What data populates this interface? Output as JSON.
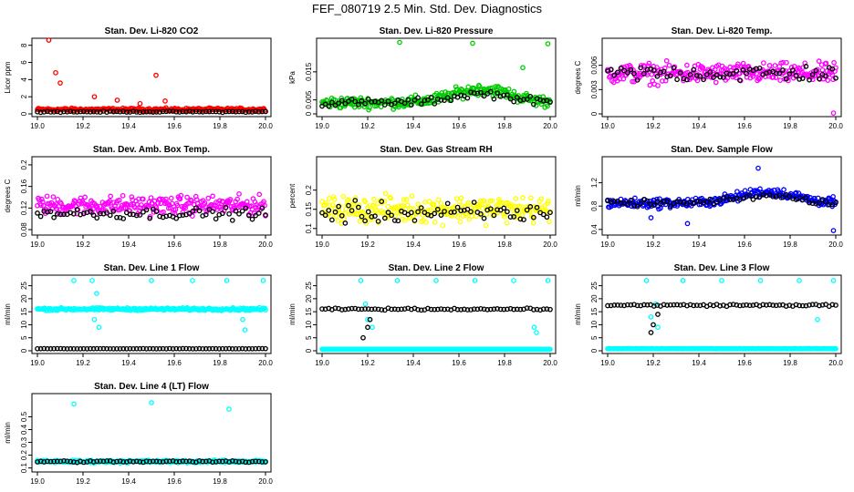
{
  "title": "FEF_080719  2.5 Min. Std. Dev. Diagnostics",
  "chart_data": [
    {
      "type": "scatter",
      "title": "Stan. Dev. Li-820 CO2",
      "ylabel": "Licor ppm",
      "xlim": [
        19.0,
        20.0
      ],
      "ylim": [
        0,
        8.5
      ],
      "yticks": [
        0,
        2,
        4,
        6,
        8
      ],
      "xticks": [
        19.0,
        19.2,
        19.4,
        19.6,
        19.8,
        20.0
      ],
      "series": [
        {
          "name": "red",
          "color": "#ff0000",
          "base": 0.5,
          "noise": 0.25,
          "events": [
            [
              19.08,
              4.8
            ],
            [
              19.1,
              3.6
            ],
            [
              19.05,
              8.6
            ],
            [
              19.25,
              2.0
            ],
            [
              19.35,
              1.6
            ],
            [
              19.45,
              1.2
            ],
            [
              19.52,
              4.5
            ],
            [
              19.56,
              1.5
            ]
          ]
        },
        {
          "name": "black",
          "color": "#000000",
          "base": 0.25,
          "noise": 0.1,
          "events": []
        }
      ]
    },
    {
      "type": "scatter",
      "title": "Stan. Dev. Li-820 Pressure",
      "ylabel": "kPa",
      "xlim": [
        19.0,
        20.0
      ],
      "ylim": [
        0,
        0.026
      ],
      "yticks": [
        0.0,
        0.005,
        0.015
      ],
      "xticks": [
        19.0,
        19.2,
        19.4,
        19.6,
        19.8,
        20.0
      ],
      "series": [
        {
          "name": "green",
          "color": "#00cc00",
          "base": 0.004,
          "noise": 0.003,
          "events": [
            [
              19.34,
              0.0255
            ],
            [
              19.66,
              0.0252
            ],
            [
              19.88,
              0.0165
            ],
            [
              19.99,
              0.025
            ]
          ]
        },
        {
          "name": "black",
          "color": "#000000",
          "base": 0.004,
          "noise": 0.002,
          "events": []
        }
      ]
    },
    {
      "type": "scatter",
      "title": "Stan. Dev. Li-820 Temp.",
      "ylabel": "degrees C",
      "xlim": [
        19.0,
        20.0
      ],
      "ylim": [
        0,
        0.009
      ],
      "yticks": [
        0.0,
        0.003,
        0.006
      ],
      "xticks": [
        19.0,
        19.2,
        19.4,
        19.6,
        19.8,
        20.0
      ],
      "series": [
        {
          "name": "magenta",
          "color": "#ff00ff",
          "base": 0.005,
          "noise": 0.0018,
          "events": [
            [
              19.99,
              0.0001
            ]
          ]
        },
        {
          "name": "black",
          "color": "#000000",
          "base": 0.005,
          "noise": 0.0015,
          "events": []
        }
      ]
    },
    {
      "type": "scatter",
      "title": "Stan. Dev. Amb. Box Temp.",
      "ylabel": "degrees C",
      "xlim": [
        19.0,
        20.0
      ],
      "ylim": [
        0.075,
        0.21
      ],
      "yticks": [
        0.08,
        0.12,
        0.16,
        0.2
      ],
      "xticks": [
        19.0,
        19.2,
        19.4,
        19.6,
        19.8,
        20.0
      ],
      "series": [
        {
          "name": "magenta",
          "color": "#ff00ff",
          "base": 0.125,
          "noise": 0.025,
          "events": []
        },
        {
          "name": "black",
          "color": "#000000",
          "base": 0.11,
          "noise": 0.015,
          "events": []
        }
      ]
    },
    {
      "type": "scatter",
      "title": "Stan. Dev. Gas Stream RH",
      "ylabel": "percent",
      "xlim": [
        19.0,
        20.0
      ],
      "ylim": [
        0.09,
        0.28
      ],
      "yticks": [
        0.1,
        0.15,
        0.2
      ],
      "xticks": [
        19.0,
        19.2,
        19.4,
        19.6,
        19.8,
        20.0
      ],
      "series": [
        {
          "name": "yellow",
          "color": "#ffff00",
          "base": 0.15,
          "noise": 0.05,
          "events": []
        },
        {
          "name": "black",
          "color": "#000000",
          "base": 0.14,
          "noise": 0.04,
          "events": []
        }
      ]
    },
    {
      "type": "scatter",
      "title": "Stan. Dev. Sample Flow",
      "ylabel": "ml/min",
      "xlim": [
        19.0,
        20.0
      ],
      "ylim": [
        0.35,
        1.6
      ],
      "yticks": [
        0.4,
        0.8,
        1.2
      ],
      "xticks": [
        19.0,
        19.2,
        19.4,
        19.6,
        19.8,
        20.0
      ],
      "series": [
        {
          "name": "blue",
          "color": "#0000ff",
          "base": 0.85,
          "noise": 0.12,
          "events": [
            [
              19.99,
              0.38
            ],
            [
              19.35,
              0.5
            ],
            [
              19.19,
              0.6
            ],
            [
              19.66,
              1.45
            ]
          ]
        },
        {
          "name": "black",
          "color": "#000000",
          "base": 0.85,
          "noise": 0.08,
          "events": []
        }
      ]
    },
    {
      "type": "scatter",
      "title": "Stan. Dev. Line 1 Flow",
      "ylabel": "ml/min",
      "xlim": [
        19.0,
        20.0
      ],
      "ylim": [
        0,
        28
      ],
      "yticks": [
        0,
        5,
        10,
        15,
        20,
        25
      ],
      "xticks": [
        19.0,
        19.2,
        19.4,
        19.6,
        19.8,
        20.0
      ],
      "series": [
        {
          "name": "cyan",
          "color": "#00ffff",
          "base": 16,
          "noise": 0.7,
          "events": [
            [
              19.16,
              27
            ],
            [
              19.24,
              27
            ],
            [
              19.26,
              22
            ],
            [
              19.25,
              12
            ],
            [
              19.27,
              9
            ],
            [
              19.5,
              27
            ],
            [
              19.68,
              27
            ],
            [
              19.83,
              27
            ],
            [
              19.9,
              12
            ],
            [
              19.91,
              8
            ],
            [
              19.99,
              27
            ]
          ]
        },
        {
          "name": "black",
          "color": "#000000",
          "base": 0.8,
          "noise": 0.1,
          "events": []
        }
      ]
    },
    {
      "type": "scatter",
      "title": "Stan. Dev. Line 2 Flow",
      "ylabel": "ml/min",
      "xlim": [
        19.0,
        20.0
      ],
      "ylim": [
        0,
        28
      ],
      "yticks": [
        0,
        5,
        10,
        15,
        20,
        25
      ],
      "xticks": [
        19.0,
        19.2,
        19.4,
        19.6,
        19.8,
        20.0
      ],
      "series": [
        {
          "name": "cyan",
          "color": "#00ffff",
          "base": 0.5,
          "noise": 0.1,
          "events": [
            [
              19.17,
              27
            ],
            [
              19.19,
              18
            ],
            [
              19.2,
              12
            ],
            [
              19.22,
              9
            ],
            [
              19.33,
              27
            ],
            [
              19.5,
              27
            ],
            [
              19.67,
              27
            ],
            [
              19.84,
              27
            ],
            [
              19.93,
              9
            ],
            [
              19.94,
              7
            ],
            [
              19.99,
              27
            ]
          ]
        },
        {
          "name": "black",
          "color": "#000000",
          "base": 16,
          "noise": 0.5,
          "events": [
            [
              19.18,
              5
            ],
            [
              19.2,
              9
            ],
            [
              19.21,
              12
            ]
          ]
        }
      ]
    },
    {
      "type": "scatter",
      "title": "Stan. Dev. Line 3 Flow",
      "ylabel": "ml/min",
      "xlim": [
        19.0,
        20.0
      ],
      "ylim": [
        0,
        28
      ],
      "yticks": [
        0,
        5,
        10,
        15,
        20,
        25
      ],
      "xticks": [
        19.0,
        19.2,
        19.4,
        19.6,
        19.8,
        20.0
      ],
      "series": [
        {
          "name": "cyan",
          "color": "#00ffff",
          "base": 0.8,
          "noise": 0.1,
          "events": [
            [
              19.17,
              27
            ],
            [
              19.19,
              13
            ],
            [
              19.21,
              18
            ],
            [
              19.22,
              9
            ],
            [
              19.33,
              27
            ],
            [
              19.5,
              27
            ],
            [
              19.67,
              27
            ],
            [
              19.84,
              27
            ],
            [
              19.92,
              12
            ],
            [
              19.99,
              27
            ]
          ]
        },
        {
          "name": "black",
          "color": "#000000",
          "base": 17.5,
          "noise": 0.6,
          "events": [
            [
              19.19,
              7
            ],
            [
              19.2,
              10
            ],
            [
              19.22,
              14
            ]
          ]
        }
      ]
    },
    {
      "type": "scatter",
      "title": "Stan. Dev. Line 4 (LT) Flow",
      "ylabel": "ml/min",
      "xlim": [
        19.0,
        20.0
      ],
      "ylim": [
        0.09,
        0.66
      ],
      "yticks": [
        0.1,
        0.2,
        0.3,
        0.4,
        0.5
      ],
      "xticks": [
        19.0,
        19.2,
        19.4,
        19.6,
        19.8,
        20.0
      ],
      "series": [
        {
          "name": "cyan",
          "color": "#00ffff",
          "base": 0.15,
          "noise": 0.015,
          "events": [
            [
              19.16,
              0.6
            ],
            [
              19.5,
              0.61
            ],
            [
              19.84,
              0.56
            ]
          ]
        },
        {
          "name": "black",
          "color": "#000000",
          "base": 0.15,
          "noise": 0.01,
          "events": []
        }
      ]
    }
  ]
}
